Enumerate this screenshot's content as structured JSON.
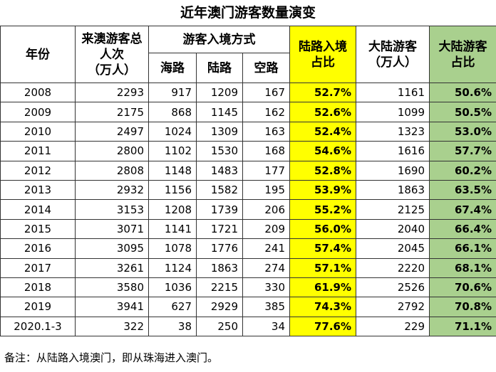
{
  "title": "近年澳门游客数量演变",
  "headers": {
    "year": "年份",
    "total_line1": "来澳游客总",
    "total_line2": "人次",
    "total_line3": "（万人）",
    "entry_mode": "游客入境方式",
    "sea": "海路",
    "land": "陆路",
    "air": "空路",
    "land_share_line1": "陆路入境",
    "land_share_line2": "占比",
    "mainland_line1": "大陆游客",
    "mainland_line2": "（万人）",
    "mainland_share_line1": "大陆游客",
    "mainland_share_line2": "占比"
  },
  "colors": {
    "land_share_bg": "#ffff00",
    "mainland_share_bg": "#a9d08e"
  },
  "rows": [
    {
      "year": "2008",
      "total": "2293",
      "sea": "917",
      "land": "1209",
      "air": "167",
      "land_share": "52.7%",
      "mainland": "1161",
      "mainland_share": "50.6%"
    },
    {
      "year": "2009",
      "total": "2175",
      "sea": "868",
      "land": "1145",
      "air": "162",
      "land_share": "52.6%",
      "mainland": "1099",
      "mainland_share": "50.5%"
    },
    {
      "year": "2010",
      "total": "2497",
      "sea": "1024",
      "land": "1309",
      "air": "163",
      "land_share": "52.4%",
      "mainland": "1323",
      "mainland_share": "53.0%"
    },
    {
      "year": "2011",
      "total": "2800",
      "sea": "1102",
      "land": "1530",
      "air": "168",
      "land_share": "54.6%",
      "mainland": "1616",
      "mainland_share": "57.7%"
    },
    {
      "year": "2012",
      "total": "2808",
      "sea": "1148",
      "land": "1483",
      "air": "177",
      "land_share": "52.8%",
      "mainland": "1690",
      "mainland_share": "60.2%"
    },
    {
      "year": "2013",
      "total": "2932",
      "sea": "1156",
      "land": "1582",
      "air": "195",
      "land_share": "53.9%",
      "mainland": "1863",
      "mainland_share": "63.5%"
    },
    {
      "year": "2014",
      "total": "3153",
      "sea": "1208",
      "land": "1739",
      "air": "206",
      "land_share": "55.2%",
      "mainland": "2125",
      "mainland_share": "67.4%"
    },
    {
      "year": "2015",
      "total": "3071",
      "sea": "1141",
      "land": "1721",
      "air": "209",
      "land_share": "56.0%",
      "mainland": "2040",
      "mainland_share": "66.4%"
    },
    {
      "year": "2016",
      "total": "3095",
      "sea": "1078",
      "land": "1776",
      "air": "241",
      "land_share": "57.4%",
      "mainland": "2045",
      "mainland_share": "66.1%"
    },
    {
      "year": "2017",
      "total": "3261",
      "sea": "1124",
      "land": "1863",
      "air": "274",
      "land_share": "57.1%",
      "mainland": "2220",
      "mainland_share": "68.1%"
    },
    {
      "year": "2018",
      "total": "3580",
      "sea": "1036",
      "land": "2215",
      "air": "330",
      "land_share": "61.9%",
      "mainland": "2526",
      "mainland_share": "70.6%"
    },
    {
      "year": "2019",
      "total": "3941",
      "sea": "627",
      "land": "2929",
      "air": "385",
      "land_share": "74.3%",
      "mainland": "2792",
      "mainland_share": "70.8%"
    },
    {
      "year": "2020.1-3",
      "total": "322",
      "sea": "38",
      "land": "250",
      "air": "34",
      "land_share": "77.6%",
      "mainland": "229",
      "mainland_share": "71.1%"
    }
  ],
  "note": "备注：从陆路入境澳门，即从珠海进入澳门。"
}
